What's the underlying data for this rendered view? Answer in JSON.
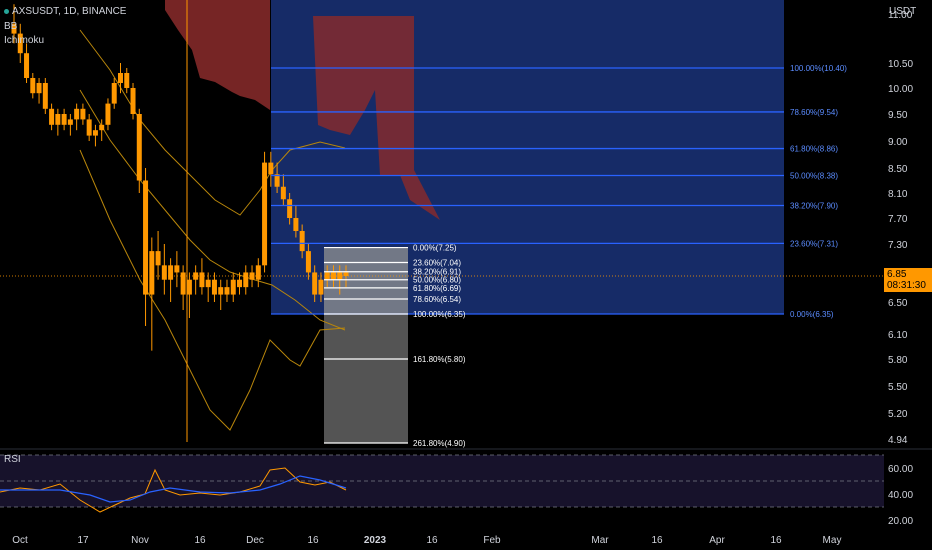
{
  "header": {
    "symbol_line": "AXSUSDT, 1D, BINANCE",
    "indicator_bb": "BB",
    "indicator_ichimoku": "Ichimoku",
    "rsi_label": "RSI"
  },
  "price_axis": {
    "currency": "USDT",
    "ticks": [
      "11.00",
      "10.50",
      "10.00",
      "9.50",
      "9.00",
      "8.50",
      "8.10",
      "7.70",
      "7.30",
      "6.85",
      "6.50",
      "6.10",
      "5.80",
      "5.50",
      "5.20",
      "4.94"
    ],
    "last_price": "6.85",
    "countdown": "08:31:30"
  },
  "rsi_axis": {
    "ticks": [
      "60.00",
      "40.00",
      "20.00"
    ]
  },
  "time_axis": {
    "labels": [
      "Oct",
      "17",
      "Nov",
      "16",
      "Dec",
      "16",
      "2023",
      "16",
      "Feb",
      "Mar",
      "16",
      "Apr",
      "16",
      "May"
    ]
  },
  "colors": {
    "background": "#000000",
    "candle": "#ff9800",
    "fib_blue_fill": "#1e3a8a",
    "fib_blue_line": "#2962ff",
    "fib_gray_fill": "#5d5d5d",
    "cloud": "#8b2b2b",
    "rsi_line_a": "#ff9800",
    "rsi_line_b": "#2962ff",
    "last_price_tag": "#ff9800"
  },
  "chart_data": {
    "type": "candlestick",
    "title": "AXSUSDT, 1D, BINANCE",
    "ylabel": "USDT",
    "ylim": [
      4.9,
      11.2
    ],
    "fib_blue": {
      "levels": [
        {
          "label": "100.00%(10.40)",
          "price": 10.4
        },
        {
          "label": "78.60%(9.54)",
          "price": 9.54
        },
        {
          "label": "61.80%(8.86)",
          "price": 8.86
        },
        {
          "label": "50.00%(8.38)",
          "price": 8.38
        },
        {
          "label": "38.20%(7.90)",
          "price": 7.9
        },
        {
          "label": "23.60%(7.31)",
          "price": 7.31
        },
        {
          "label": "0.00%(6.35)",
          "price": 6.35
        }
      ]
    },
    "fib_gray": {
      "levels": [
        {
          "label": "0.00%(7.25)",
          "price": 7.25
        },
        {
          "label": "23.60%(7.04)",
          "price": 7.04
        },
        {
          "label": "38.20%(6.91)",
          "price": 6.91
        },
        {
          "label": "50.00%(6.80)",
          "price": 6.8
        },
        {
          "label": "61.80%(6.69)",
          "price": 6.69
        },
        {
          "label": "78.60%(6.54)",
          "price": 6.54
        },
        {
          "label": "100.00%(6.35)",
          "price": 6.35
        },
        {
          "label": "161.80%(5.80)",
          "price": 5.8
        },
        {
          "label": "261.80%(4.90)",
          "price": 4.9
        }
      ]
    },
    "candles": [
      [
        10.9,
        11.1,
        10.7,
        10.8
      ],
      [
        10.8,
        10.9,
        10.5,
        10.6
      ],
      [
        10.6,
        10.7,
        10.1,
        10.2
      ],
      [
        10.2,
        10.3,
        9.8,
        9.9
      ],
      [
        9.9,
        10.2,
        9.7,
        10.1
      ],
      [
        10.1,
        10.2,
        9.5,
        9.6
      ],
      [
        9.6,
        9.7,
        9.2,
        9.3
      ],
      [
        9.3,
        9.6,
        9.1,
        9.5
      ],
      [
        9.5,
        9.6,
        9.2,
        9.3
      ],
      [
        9.3,
        9.5,
        9.1,
        9.4
      ],
      [
        9.4,
        9.7,
        9.2,
        9.6
      ],
      [
        9.6,
        9.7,
        9.3,
        9.4
      ],
      [
        9.4,
        9.5,
        9.0,
        9.1
      ],
      [
        9.1,
        9.3,
        8.9,
        9.2
      ],
      [
        9.2,
        9.4,
        9.0,
        9.3
      ],
      [
        9.3,
        9.8,
        9.2,
        9.7
      ],
      [
        9.7,
        10.2,
        9.6,
        10.1
      ],
      [
        10.1,
        10.5,
        9.9,
        10.3
      ],
      [
        10.3,
        10.4,
        9.9,
        10.0
      ],
      [
        10.0,
        10.1,
        9.4,
        9.5
      ],
      [
        9.5,
        9.6,
        8.1,
        8.3
      ],
      [
        8.3,
        8.5,
        6.2,
        6.6
      ],
      [
        6.6,
        7.4,
        5.9,
        7.2
      ],
      [
        7.2,
        7.5,
        6.8,
        7.0
      ],
      [
        7.0,
        7.3,
        6.6,
        6.8
      ],
      [
        6.8,
        7.1,
        6.5,
        7.0
      ],
      [
        7.0,
        7.2,
        6.7,
        6.9
      ],
      [
        6.9,
        7.0,
        6.4,
        6.6
      ],
      [
        6.6,
        6.9,
        6.3,
        6.8
      ],
      [
        6.8,
        7.0,
        6.6,
        6.9
      ],
      [
        6.9,
        7.1,
        6.6,
        6.7
      ],
      [
        6.7,
        6.9,
        6.5,
        6.8
      ],
      [
        6.8,
        6.9,
        6.5,
        6.6
      ],
      [
        6.6,
        6.8,
        6.4,
        6.7
      ],
      [
        6.7,
        6.8,
        6.5,
        6.6
      ],
      [
        6.6,
        6.9,
        6.5,
        6.8
      ],
      [
        6.8,
        6.9,
        6.6,
        6.7
      ],
      [
        6.7,
        7.0,
        6.6,
        6.9
      ],
      [
        6.9,
        7.0,
        6.7,
        6.8
      ],
      [
        6.8,
        7.1,
        6.7,
        7.0
      ],
      [
        7.0,
        8.8,
        6.9,
        8.6
      ],
      [
        8.6,
        8.8,
        8.2,
        8.4
      ],
      [
        8.4,
        8.6,
        8.1,
        8.2
      ],
      [
        8.2,
        8.4,
        7.9,
        8.0
      ],
      [
        8.0,
        8.1,
        7.6,
        7.7
      ],
      [
        7.7,
        7.9,
        7.4,
        7.5
      ],
      [
        7.5,
        7.6,
        7.1,
        7.2
      ],
      [
        7.2,
        7.3,
        6.8,
        6.9
      ],
      [
        6.9,
        7.0,
        6.5,
        6.6
      ],
      [
        6.6,
        6.9,
        6.5,
        6.8
      ],
      [
        6.8,
        7.0,
        6.7,
        6.9
      ],
      [
        6.9,
        7.0,
        6.7,
        6.8
      ],
      [
        6.8,
        7.0,
        6.6,
        6.9
      ],
      [
        6.9,
        7.0,
        6.7,
        6.85
      ]
    ]
  }
}
